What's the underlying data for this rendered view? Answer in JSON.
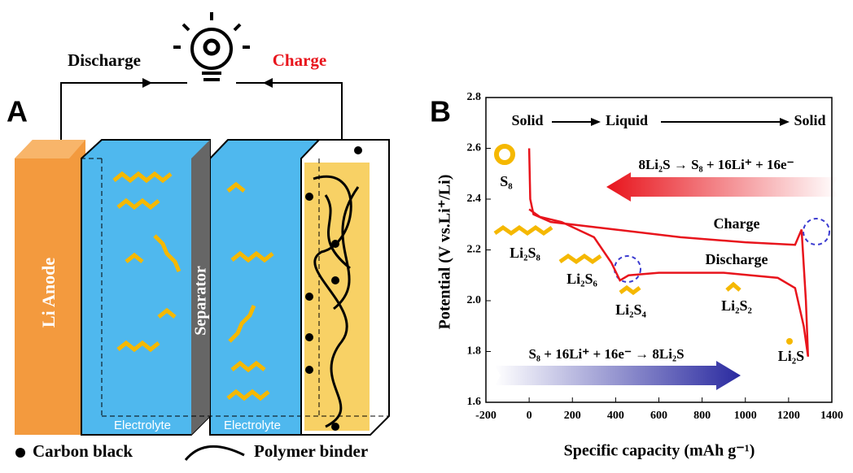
{
  "panel_a": {
    "label": "A",
    "discharge": "Discharge",
    "charge": "Charge",
    "anode": "Li Anode",
    "separator": "Separator",
    "electrolyte_left": "Electrolyte",
    "electrolyte_right": "Electrolyte",
    "legend_carbon": "Carbon black",
    "legend_binder": "Polymer binder"
  },
  "chart_data": {
    "type": "line",
    "label": "B",
    "xlabel": "Specific capacity (mAh g⁻¹)",
    "ylabel": "Potential (V vs.Li⁺/Li)",
    "xlim": [
      -200,
      1400
    ],
    "xticks": [
      -200,
      0,
      200,
      400,
      600,
      800,
      1000,
      1200,
      1400
    ],
    "ylim": [
      1.6,
      2.8
    ],
    "yticks": [
      1.6,
      1.8,
      {
        "value": 2,
        "label": "2.0"
      },
      2.2,
      2.4,
      2.6,
      2.8
    ],
    "series": [
      {
        "name": "Discharge",
        "color": "#e8141c",
        "x": [
          0,
          50,
          150,
          300,
          380,
          420,
          460,
          600,
          900,
          1150,
          1230,
          1270,
          1290
        ],
        "values": [
          2.36,
          2.33,
          2.31,
          2.25,
          2.15,
          2.08,
          2.1,
          2.11,
          2.11,
          2.09,
          2.05,
          1.9,
          1.78
        ]
      },
      {
        "name": "Charge",
        "color": "#e8141c",
        "x": [
          1290,
          1280,
          1260,
          1230,
          1000,
          700,
          400,
          100,
          20,
          5,
          0
        ],
        "values": [
          1.78,
          2.0,
          2.28,
          2.22,
          2.23,
          2.25,
          2.28,
          2.31,
          2.34,
          2.4,
          2.6
        ]
      }
    ],
    "annotations": {
      "phase_1": "Solid",
      "phase_2": "Liquid",
      "phase_3": "Solid",
      "charge_reaction": "8Li₂S → S₈ + 16Li⁺ + 16e⁻",
      "discharge_reaction": "S₈ + 16Li⁺ + 16e⁻ → 8Li₂S",
      "s8": "S₈",
      "li2s8": "Li₂S₈",
      "li2s6": "Li₂S₆",
      "li2s4": "Li₂S₄",
      "li2s2": "Li₂S₂",
      "li2s": "Li₂S"
    }
  }
}
